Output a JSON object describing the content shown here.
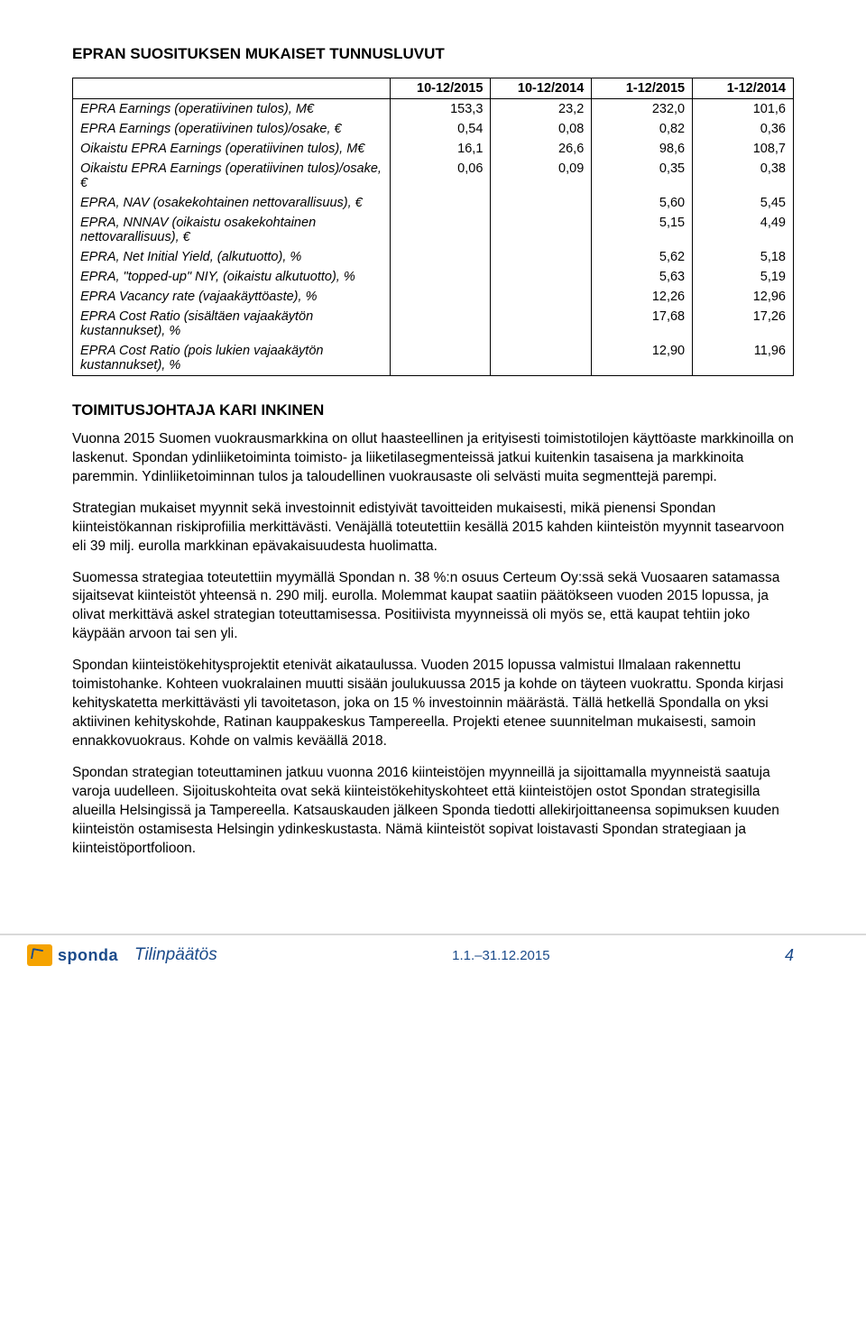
{
  "title": "EPRAN SUOSITUKSEN MUKAISET TUNNUSLUVUT",
  "table": {
    "columns": [
      "",
      "10-12/2015",
      "10-12/2014",
      "1-12/2015",
      "1-12/2014"
    ],
    "rows": [
      {
        "label": "EPRA Earnings (operatiivinen tulos), M€",
        "c": [
          "153,3",
          "23,2",
          "232,0",
          "101,6"
        ]
      },
      {
        "label": "EPRA Earnings (operatiivinen tulos)/osake, €",
        "c": [
          "0,54",
          "0,08",
          "0,82",
          "0,36"
        ]
      },
      {
        "label": "Oikaistu EPRA Earnings (operatiivinen tulos), M€",
        "c": [
          "16,1",
          "26,6",
          "98,6",
          "108,7"
        ]
      },
      {
        "label": "Oikaistu EPRA Earnings (operatiivinen tulos)/osake, €",
        "c": [
          "0,06",
          "0,09",
          "0,35",
          "0,38"
        ]
      },
      {
        "label": "EPRA, NAV (osakekohtainen nettovarallisuus), €",
        "c": [
          "",
          "",
          "5,60",
          "5,45"
        ]
      },
      {
        "label": "EPRA, NNNAV (oikaistu osakekohtainen nettovarallisuus), €",
        "c": [
          "",
          "",
          "5,15",
          "4,49"
        ]
      },
      {
        "label": "EPRA, Net Initial Yield, (alkutuotto), %",
        "c": [
          "",
          "",
          "5,62",
          "5,18"
        ]
      },
      {
        "label": "EPRA, \"topped-up\" NIY, (oikaistu alkutuotto), %",
        "c": [
          "",
          "",
          "5,63",
          "5,19"
        ]
      },
      {
        "label": "EPRA Vacancy rate (vajaakäyttöaste), %",
        "c": [
          "",
          "",
          "12,26",
          "12,96"
        ]
      },
      {
        "label": "EPRA Cost Ratio (sisältäen vajaakäytön kustannukset), %",
        "c": [
          "",
          "",
          "17,68",
          "17,26"
        ]
      },
      {
        "label": "EPRA Cost Ratio (pois lukien vajaakäytön kustannukset), %",
        "c": [
          "",
          "",
          "12,90",
          "11,96"
        ]
      }
    ]
  },
  "sectionTitle2": "TOIMITUSJOHTAJA KARI INKINEN",
  "paragraphs": [
    "Vuonna 2015 Suomen vuokrausmarkkina on ollut haasteellinen ja erityisesti toimistotilojen käyttöaste markkinoilla on laskenut. Spondan ydinliiketoiminta toimisto- ja liiketilasegmenteissä jatkui kuitenkin tasaisena ja markkinoita paremmin. Ydinliiketoiminnan tulos ja taloudellinen vuokrausaste oli selvästi muita segmenttejä parempi.",
    "Strategian mukaiset myynnit sekä investoinnit edistyivät tavoitteiden mukaisesti, mikä pienensi Spondan kiinteistökannan riskiprofiilia merkittävästi. Venäjällä toteutettiin kesällä 2015 kahden kiinteistön myynnit tasearvoon eli 39 milj. eurolla markkinan epävakaisuudesta huolimatta.",
    "Suomessa strategiaa toteutettiin myymällä Spondan n. 38 %:n osuus Certeum Oy:ssä sekä Vuosaaren satamassa sijaitsevat kiinteistöt yhteensä n. 290 milj. eurolla. Molemmat kaupat saatiin päätökseen vuoden 2015 lopussa, ja olivat merkittävä askel strategian toteuttamisessa. Positiivista myynneissä oli myös se, että kaupat tehtiin joko käypään arvoon tai sen yli.",
    "Spondan kiinteistökehitysprojektit etenivät aikataulussa. Vuoden 2015 lopussa valmistui Ilmalaan rakennettu toimistohanke. Kohteen vuokralainen muutti sisään joulukuussa 2015 ja kohde on täyteen vuokrattu. Sponda kirjasi kehityskatetta merkittävästi yli tavoitetason, joka on 15 % investoinnin määrästä. Tällä hetkellä Spondalla on yksi aktiivinen kehityskohde, Ratinan kauppakeskus Tampereella. Projekti etenee suunnitelman mukaisesti, samoin ennakkovuokraus. Kohde on valmis keväällä 2018.",
    "Spondan strategian toteuttaminen jatkuu vuonna 2016 kiinteistöjen myynneillä ja sijoittamalla myynneistä saatuja varoja uudelleen. Sijoituskohteita ovat sekä kiinteistökehityskohteet että kiinteistöjen ostot Spondan strategisilla alueilla Helsingissä ja Tampereella. Katsauskauden jälkeen Sponda tiedotti allekirjoittaneensa sopimuksen kuuden kiinteistön ostamisesta Helsingin ydinkeskustasta. Nämä kiinteistöt sopivat loistavasti Spondan strategiaan ja kiinteistöportfolioon."
  ],
  "footer": {
    "brand": "sponda",
    "report": "Tilinpäätös",
    "period": "1.1.–31.12.2015",
    "page": "4"
  }
}
